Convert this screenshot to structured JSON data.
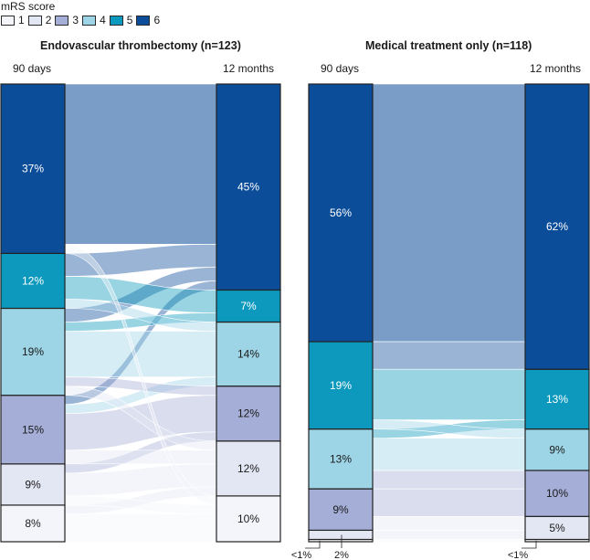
{
  "legend": {
    "title": "mRS score",
    "items": [
      {
        "label": "1",
        "color": "#f3f5fa"
      },
      {
        "label": "2",
        "color": "#e3e6f3"
      },
      {
        "label": "3",
        "color": "#a4aed7"
      },
      {
        "label": "4",
        "color": "#9dd5e6"
      },
      {
        "label": "5",
        "color": "#0c99bd"
      },
      {
        "label": "6",
        "color": "#0c4d9a"
      }
    ]
  },
  "chart_data": [
    {
      "type": "sankey",
      "title": "Endovascular thrombectomy (n=123)",
      "left_label": "90 days",
      "right_label": "12 months",
      "categories": [
        "1",
        "2",
        "3",
        "4",
        "5",
        "6"
      ],
      "left_values": [
        8,
        9,
        15,
        19,
        12,
        37
      ],
      "right_values": [
        10,
        12,
        12,
        14,
        7,
        45
      ],
      "left_labels": [
        "8%",
        "9%",
        "15%",
        "19%",
        "12%",
        "37%"
      ],
      "right_labels": [
        "10%",
        "12%",
        "12%",
        "14%",
        "7%",
        "45%"
      ],
      "flows": [
        {
          "from": "1",
          "to": "1",
          "value": 6
        },
        {
          "from": "1",
          "to": "2",
          "value": 2
        },
        {
          "from": "2",
          "to": "1",
          "value": 2
        },
        {
          "from": "2",
          "to": "2",
          "value": 5
        },
        {
          "from": "2",
          "to": "3",
          "value": 2
        },
        {
          "from": "3",
          "to": "2",
          "value": 3
        },
        {
          "from": "3",
          "to": "3",
          "value": 8
        },
        {
          "from": "3",
          "to": "4",
          "value": 2
        },
        {
          "from": "3",
          "to": "6",
          "value": 2
        },
        {
          "from": "4",
          "to": "2",
          "value": 2
        },
        {
          "from": "4",
          "to": "3",
          "value": 2
        },
        {
          "from": "4",
          "to": "4",
          "value": 10
        },
        {
          "from": "4",
          "to": "5",
          "value": 2
        },
        {
          "from": "4",
          "to": "6",
          "value": 3
        },
        {
          "from": "5",
          "to": "4",
          "value": 2
        },
        {
          "from": "5",
          "to": "5",
          "value": 5
        },
        {
          "from": "5",
          "to": "6",
          "value": 5
        },
        {
          "from": "6",
          "to": "6",
          "value": 35
        },
        {
          "from": "6",
          "to": "1",
          "value": 2
        }
      ]
    },
    {
      "type": "sankey",
      "title": "Medical treatment only (n=118)",
      "left_label": "90 days",
      "right_label": "12 months",
      "categories": [
        "1",
        "2",
        "3",
        "4",
        "5",
        "6"
      ],
      "left_values": [
        0.5,
        2,
        9,
        13,
        19,
        56
      ],
      "right_values": [
        0.5,
        5,
        10,
        9,
        13,
        62
      ],
      "left_labels": [
        "<1%",
        "2%",
        "9%",
        "13%",
        "19%",
        "56%"
      ],
      "right_labels": [
        "<1%",
        "5%",
        "10%",
        "9%",
        "13%",
        "62%"
      ],
      "flows": [
        {
          "from": "1",
          "to": "1",
          "value": 0.5
        },
        {
          "from": "2",
          "to": "2",
          "value": 2
        },
        {
          "from": "3",
          "to": "2",
          "value": 3
        },
        {
          "from": "3",
          "to": "3",
          "value": 6
        },
        {
          "from": "4",
          "to": "3",
          "value": 4
        },
        {
          "from": "4",
          "to": "4",
          "value": 7
        },
        {
          "from": "4",
          "to": "5",
          "value": 2
        },
        {
          "from": "5",
          "to": "4",
          "value": 2
        },
        {
          "from": "5",
          "to": "5",
          "value": 11
        },
        {
          "from": "5",
          "to": "6",
          "value": 6
        },
        {
          "from": "6",
          "to": "6",
          "value": 56
        }
      ]
    }
  ]
}
